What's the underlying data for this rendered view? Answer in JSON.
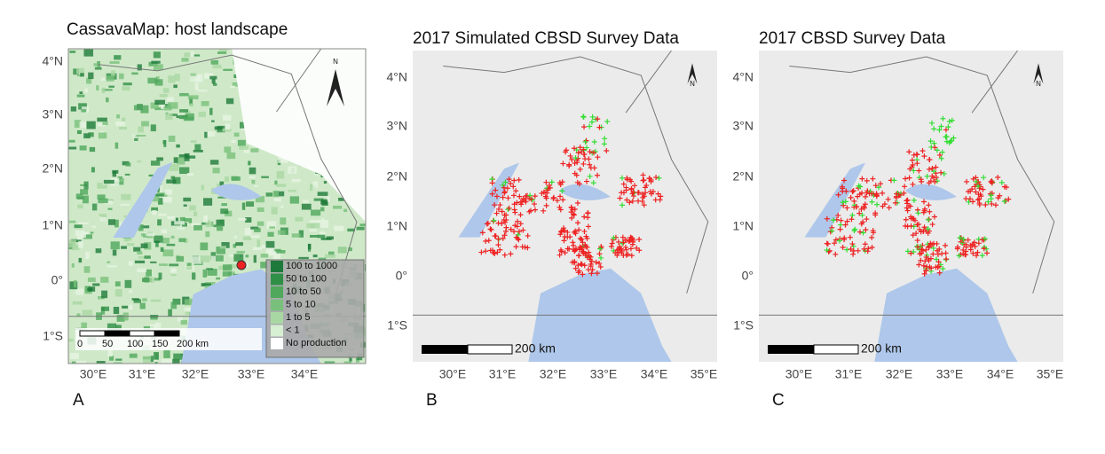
{
  "panels": [
    {
      "title": "CassavaMap: host landscape",
      "letter": "A",
      "lat_labels": [
        "4°N",
        "3°N",
        "2°N",
        "1°N",
        "0°",
        "1°S"
      ],
      "lon_labels": [
        "30°E",
        "31°E",
        "32°E",
        "33°E",
        "34°E"
      ],
      "scale_labels": [
        "0",
        "50",
        "100",
        "150",
        "200 km"
      ],
      "north": "N",
      "legend": [
        {
          "label": "100 to 1000",
          "color": "#1e7a3a"
        },
        {
          "label": "50 to 100",
          "color": "#2f8f46"
        },
        {
          "label": "10 to 50",
          "color": "#4fa85c"
        },
        {
          "label": "5 to 10",
          "color": "#79c07c"
        },
        {
          "label": "1 to 5",
          "color": "#a9d7a3"
        },
        {
          "label": "< 1",
          "color": "#d6eed1"
        },
        {
          "label": "No production",
          "color": "#ffffff"
        }
      ]
    },
    {
      "title": "2017 Simulated CBSD Survey Data",
      "letter": "B",
      "lat_labels": [
        "4°N",
        "3°N",
        "2°N",
        "1°N",
        "0°",
        "1°S"
      ],
      "lon_labels": [
        "30°E",
        "31°E",
        "32°E",
        "33°E",
        "34°E",
        "35°E"
      ],
      "scale_labels": [
        "200 km"
      ],
      "north": "N"
    },
    {
      "title": "2017 CBSD Survey Data",
      "letter": "C",
      "lat_labels": [
        "4°N",
        "3°N",
        "2°N",
        "1°N",
        "0°",
        "1°S"
      ],
      "lon_labels": [
        "30°E",
        "31°E",
        "32°E",
        "33°E",
        "34°E",
        "35°E"
      ],
      "scale_labels": [
        "200 km"
      ],
      "north": "N"
    }
  ]
}
